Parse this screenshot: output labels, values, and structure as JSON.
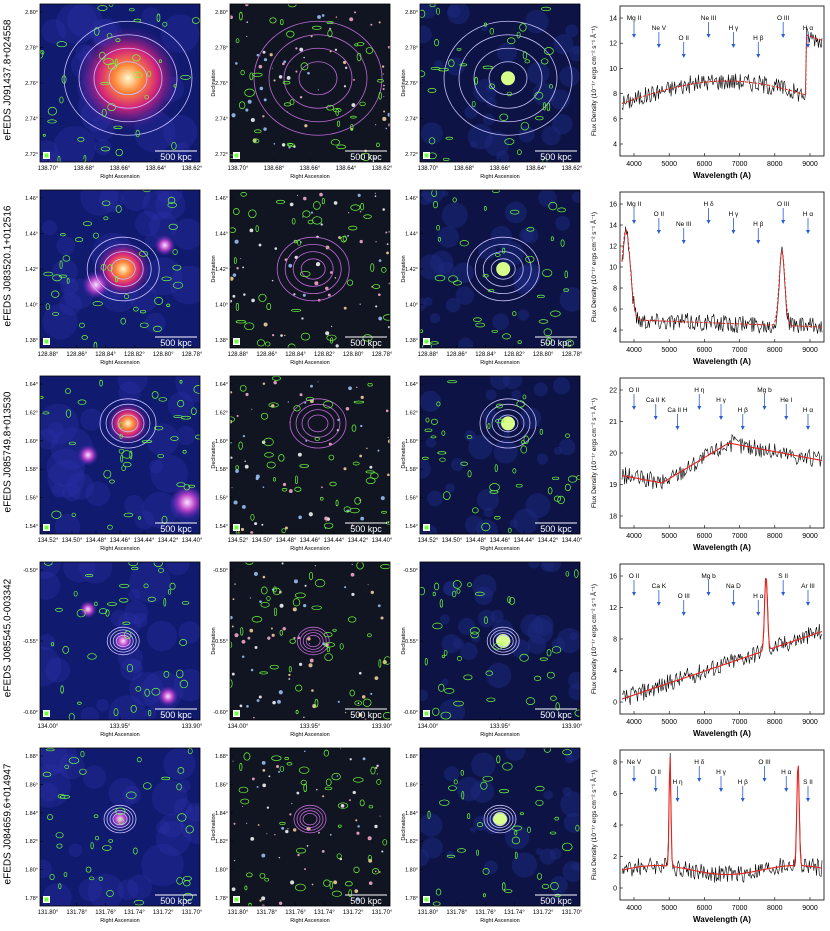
{
  "common": {
    "right_ascension_label": "Right Ascension",
    "declination_label": "Declination",
    "scale_bar_label": "500 kpc",
    "spec_ylabel": "Flux Density (10⁻¹⁷ ergs cm⁻² s⁻¹ Å⁻¹)",
    "spec_xlabel": "Wavelength (A)",
    "spec_colors": {
      "observed": "#000000",
      "model": "#e8221c",
      "absorption_arrow": "#2a5bd7",
      "stellar_arrow": "#e84a1c"
    },
    "image_colors": {
      "background": "#101a6e",
      "xray_contour": "#c9c1ff",
      "optical_contour": "#6cff3a",
      "radio_contour": "#c06ad8"
    }
  },
  "rows": [
    {
      "id": "eFEDS J091437.8+024558",
      "image_ra_ticks": [
        "138.70°",
        "138.68°",
        "138.66°",
        "138.64°",
        "138.62°"
      ],
      "image_dec_ticks": [
        "2.80°",
        "2.78°",
        "2.76°",
        "2.74°",
        "2.72°"
      ],
      "spectrum": {
        "x_ticks": [
          "4000",
          "5000",
          "6000",
          "7000",
          "8000",
          "9000"
        ],
        "y_ticks": [
          "4",
          "6",
          "8",
          "10",
          "12",
          "14"
        ],
        "lines": [
          "Mg II",
          "Ne V",
          "O II",
          "Ne III",
          "H γ",
          "H β",
          "O III",
          "H α"
        ]
      }
    },
    {
      "id": "eFEDS J083520.1+012516",
      "image_ra_ticks": [
        "128.88°",
        "128.86°",
        "128.84°",
        "128.82°",
        "128.80°",
        "128.78°"
      ],
      "image_dec_ticks": [
        "1.46°",
        "1.44°",
        "1.42°",
        "1.40°",
        "1.38°"
      ],
      "spectrum": {
        "x_ticks": [
          "4000",
          "5000",
          "6000",
          "7000",
          "8000",
          "9000"
        ],
        "y_ticks": [
          "4",
          "6",
          "8",
          "10",
          "12",
          "14",
          "16"
        ],
        "lines": [
          "Mg II",
          "O II",
          "Ne III",
          "H δ",
          "H γ",
          "H β",
          "O III",
          "H α"
        ]
      }
    },
    {
      "id": "eFEDS J085749.8+013530",
      "image_ra_ticks": [
        "134.52°",
        "134.50°",
        "134.48°",
        "134.46°",
        "134.44°",
        "134.42°",
        "134.40°"
      ],
      "image_dec_ticks": [
        "1.64°",
        "1.62°",
        "1.60°",
        "1.58°",
        "1.56°",
        "1.54°"
      ],
      "spectrum": {
        "x_ticks": [
          "4000",
          "5000",
          "6000",
          "7000",
          "8000",
          "9000"
        ],
        "y_ticks": [
          "18",
          "19",
          "20",
          "21",
          "22"
        ],
        "lines": [
          "O II",
          "Ca II K",
          "Ca II H",
          "H η",
          "H γ",
          "H β",
          "Mg b",
          "He I",
          "H α"
        ]
      }
    },
    {
      "id": "eFEDS J085545.0-003342",
      "image_ra_ticks": [
        "134.00°",
        "133.95°",
        "133.90°"
      ],
      "image_dec_ticks": [
        "-0.50°",
        "-0.55°",
        "-0.60°"
      ],
      "spectrum": {
        "x_ticks": [
          "4000",
          "5000",
          "6000",
          "7000",
          "8000",
          "9000"
        ],
        "y_ticks": [
          "0",
          "4",
          "8",
          "12",
          "16"
        ],
        "lines": [
          "O II",
          "Ca K",
          "O III",
          "Mg b",
          "Na D",
          "H α",
          "S II",
          "Ar III"
        ]
      }
    },
    {
      "id": "eFEDS J084659.6+014947",
      "image_ra_ticks": [
        "131.80°",
        "131.78°",
        "131.76°",
        "131.74°",
        "131.72°",
        "131.70°"
      ],
      "image_dec_ticks": [
        "1.88°",
        "1.86°",
        "1.84°",
        "1.82°",
        "1.80°",
        "1.78°"
      ],
      "spectrum": {
        "x_ticks": [
          "4000",
          "5000",
          "6000",
          "7000",
          "8000",
          "9000"
        ],
        "y_ticks": [
          "0",
          "2",
          "4",
          "6",
          "8"
        ],
        "lines": [
          "Ne V",
          "O II",
          "H η",
          "H δ",
          "H γ",
          "H β",
          "O III",
          "H α",
          "S II"
        ]
      }
    }
  ]
}
